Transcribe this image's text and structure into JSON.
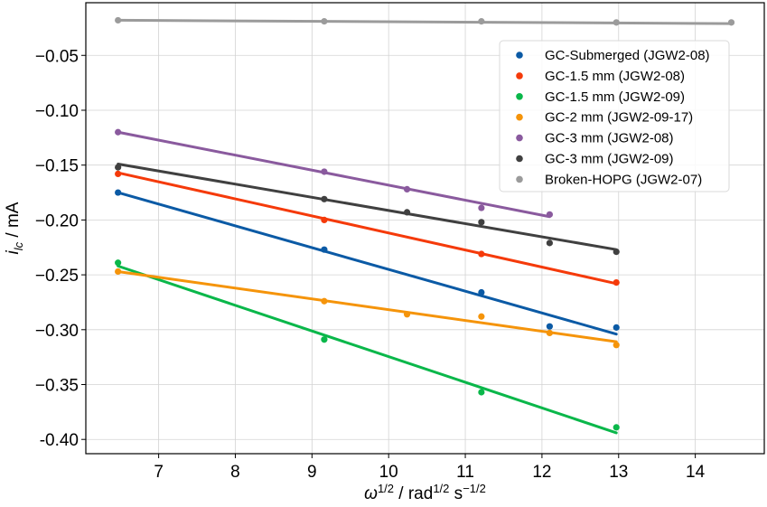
{
  "chart_data": {
    "type": "scatter",
    "title": "",
    "xlabel": "ω^1/2 / rad^1/2 s^−1/2",
    "ylabel": "i_lc / mA",
    "xlim": [
      6.05,
      14.9
    ],
    "ylim": [
      -0.413,
      -0.002
    ],
    "xticks": [
      7,
      8,
      9,
      10,
      11,
      12,
      13,
      14
    ],
    "xtick_labels": [
      "7",
      "8",
      "9",
      "10",
      "11",
      "12",
      "13",
      "14"
    ],
    "yticks": [
      -0.4,
      -0.35,
      -0.3,
      -0.25,
      -0.2,
      -0.15,
      -0.1,
      -0.05
    ],
    "ytick_labels": [
      "-0.40",
      "−0.35",
      "−0.30",
      "−0.25",
      "−0.20",
      "−0.15",
      "−0.10",
      "−0.05"
    ],
    "grid": true,
    "legend_position": "top-right",
    "series": [
      {
        "name": "GC-Submerged (JGW2-08)",
        "color": "#0b5aa5",
        "x": [
          6.47,
          9.16,
          11.21,
          12.1,
          12.97
        ],
        "y": [
          -0.175,
          -0.227,
          -0.266,
          -0.297,
          -0.298
        ],
        "fit": [
          [
            6.47,
            -0.175
          ],
          [
            12.97,
            -0.304
          ]
        ]
      },
      {
        "name": "GC-1.5 mm (JGW2-08)",
        "color": "#f53a0a",
        "x": [
          6.47,
          9.16,
          11.21,
          12.97
        ],
        "y": [
          -0.158,
          -0.2,
          -0.231,
          -0.257
        ],
        "fit": [
          [
            6.47,
            -0.157
          ],
          [
            12.97,
            -0.258
          ]
        ]
      },
      {
        "name": "GC-1.5 mm (JGW2-09)",
        "color": "#0ab74a",
        "x": [
          6.47,
          9.16,
          11.21,
          12.97
        ],
        "y": [
          -0.239,
          -0.309,
          -0.357,
          -0.389
        ],
        "fit": [
          [
            6.47,
            -0.242
          ],
          [
            12.97,
            -0.394
          ]
        ]
      },
      {
        "name": "GC-2 mm (JGW2-09-17)",
        "color": "#f5940a",
        "x": [
          6.47,
          9.16,
          10.24,
          11.21,
          12.1,
          12.97
        ],
        "y": [
          -0.247,
          -0.274,
          -0.286,
          -0.288,
          -0.303,
          -0.314
        ],
        "fit": [
          [
            6.47,
            -0.247
          ],
          [
            12.97,
            -0.311
          ]
        ]
      },
      {
        "name": "GC-3 mm (JGW2-08)",
        "color": "#8a5a9e",
        "x": [
          6.47,
          9.16,
          10.24,
          11.21,
          12.1
        ],
        "y": [
          -0.12,
          -0.156,
          -0.172,
          -0.189,
          -0.195
        ],
        "fit": [
          [
            6.47,
            -0.12
          ],
          [
            12.1,
            -0.197
          ]
        ]
      },
      {
        "name": "GC-3 mm (JGW2-09)",
        "color": "#404040",
        "x": [
          6.47,
          9.16,
          10.24,
          11.21,
          12.1,
          12.97
        ],
        "y": [
          -0.152,
          -0.181,
          -0.193,
          -0.202,
          -0.221,
          -0.229
        ],
        "fit": [
          [
            6.47,
            -0.149
          ],
          [
            12.97,
            -0.227
          ]
        ]
      },
      {
        "name": "Broken-HOPG (JGW2-07)",
        "color": "#9b9b9b",
        "x": [
          6.47,
          9.16,
          11.21,
          12.97,
          14.47
        ],
        "y": [
          -0.018,
          -0.019,
          -0.019,
          -0.02,
          -0.02
        ],
        "fit": [
          [
            6.47,
            -0.018
          ],
          [
            14.47,
            -0.021
          ]
        ]
      }
    ]
  }
}
